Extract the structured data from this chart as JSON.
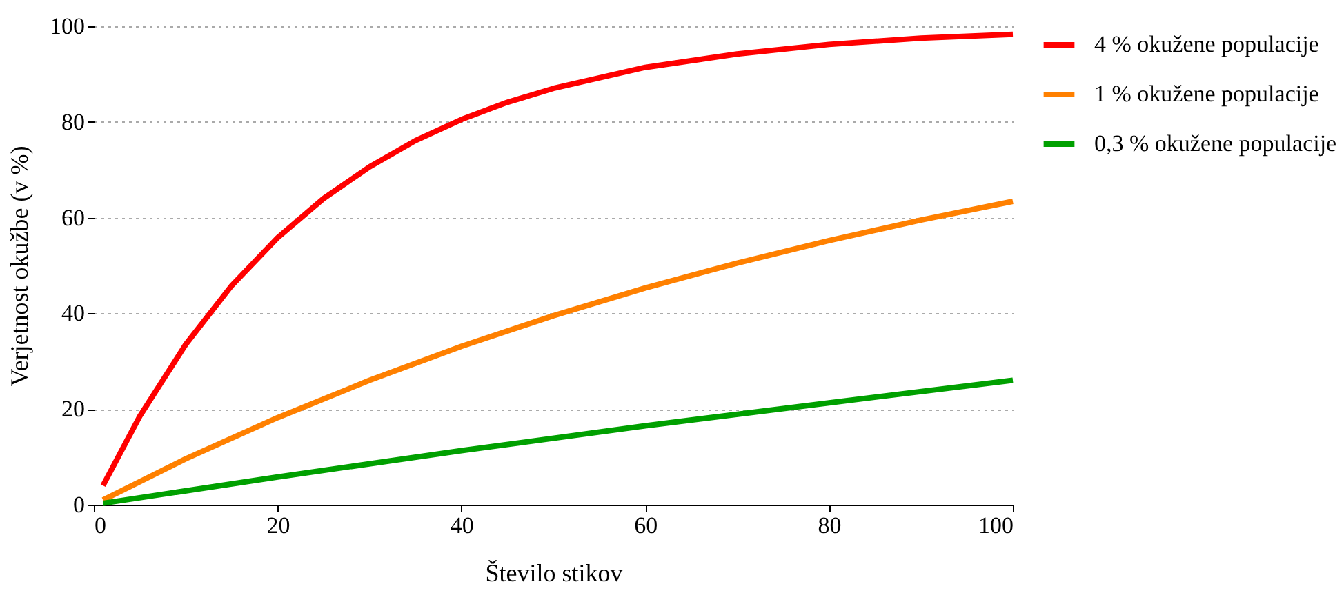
{
  "chart_data": {
    "type": "line",
    "xlabel": "Število stikov",
    "ylabel": "Verjetnost okužbe (v %)",
    "xlim": [
      0,
      100
    ],
    "xticks": [
      0,
      20,
      40,
      60,
      80,
      100
    ],
    "ylim": [
      0,
      100
    ],
    "yticks": [
      0,
      20,
      40,
      60,
      80,
      100
    ],
    "grid": "y",
    "legend": "right",
    "marker": "none",
    "line_style": "solid",
    "series": [
      {
        "name": "4 % okužene populacije",
        "color": "#ff0000",
        "x": [
          1,
          5,
          10,
          15,
          20,
          25,
          30,
          35,
          40,
          45,
          50,
          60,
          70,
          80,
          90,
          100
        ],
        "values": [
          4,
          18.5,
          33.5,
          45.8,
          55.8,
          64,
          70.6,
          76.1,
          80.5,
          84.1,
          87,
          91.4,
          94.2,
          96.2,
          97.5,
          98.3
        ]
      },
      {
        "name": "1 % okužene populacije",
        "color": "#ff8000",
        "x": [
          1,
          10,
          20,
          30,
          40,
          50,
          60,
          70,
          80,
          90,
          100
        ],
        "values": [
          1,
          9.6,
          18.2,
          26,
          33.1,
          39.5,
          45.3,
          50.5,
          55.2,
          59.5,
          63.4
        ]
      },
      {
        "name": "0,3 % okužene populacije",
        "color": "#00a000",
        "x": [
          1,
          20,
          40,
          60,
          80,
          100
        ],
        "values": [
          0.3,
          5.8,
          11.3,
          16.5,
          21.3,
          26
        ]
      }
    ]
  }
}
